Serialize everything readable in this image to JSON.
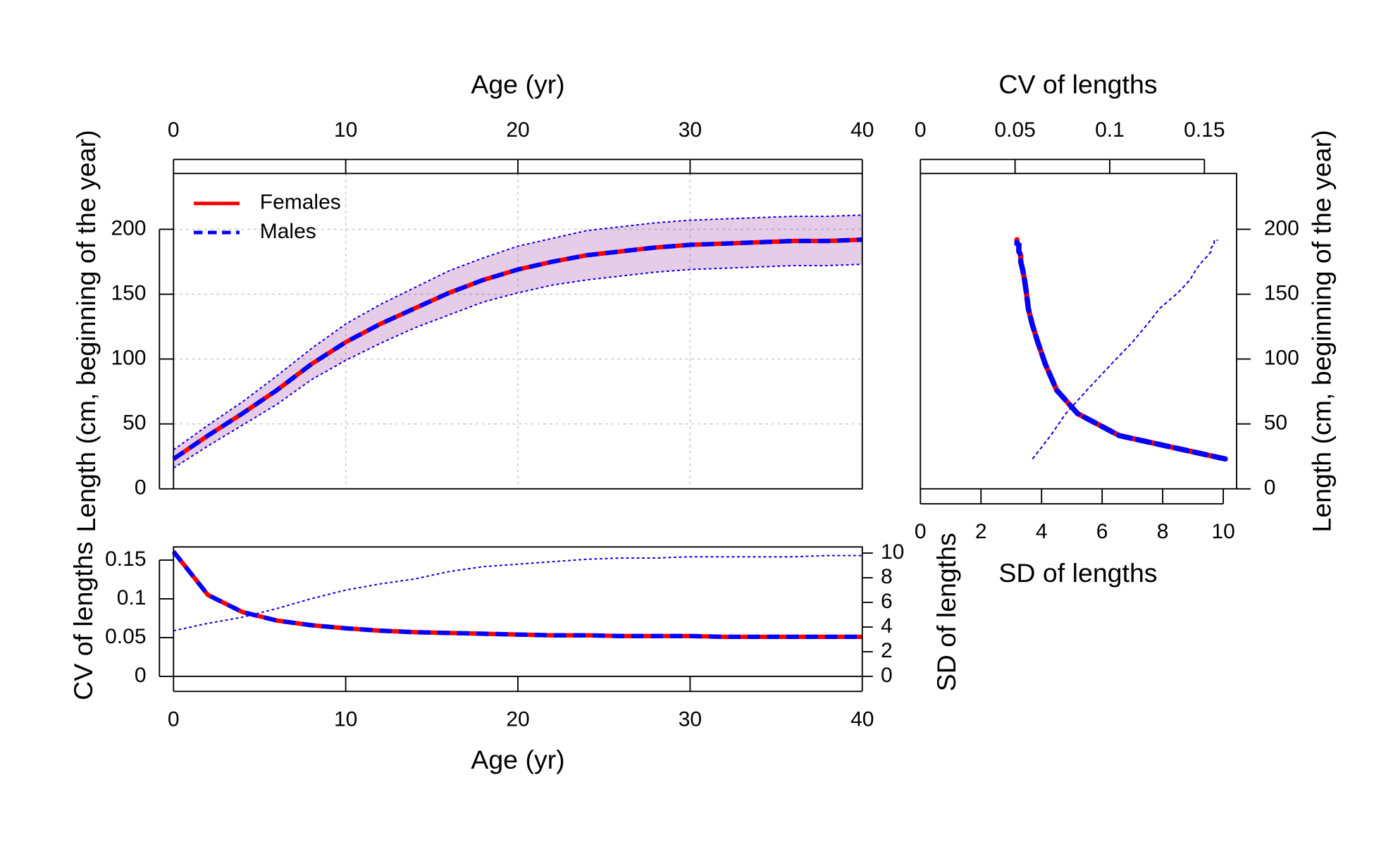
{
  "chart_data": [
    {
      "type": "line",
      "xlabel": "Age (yr)",
      "ylabel": "Length (cm, beginning of the year)",
      "x": [
        0,
        2,
        4,
        6,
        8,
        10,
        12,
        14,
        16,
        18,
        20,
        22,
        24,
        26,
        28,
        30,
        32,
        34,
        36,
        38,
        40
      ],
      "series": [
        {
          "name": "Females",
          "color": "#ff0000",
          "linestyle": "solid",
          "values": [
            23,
            41,
            58,
            76,
            96,
            113,
            127,
            139,
            151,
            161,
            169,
            175,
            180,
            183,
            186,
            188,
            189,
            190,
            191,
            191,
            192
          ],
          "upper": [
            30,
            49,
            67,
            87,
            108,
            127,
            142,
            155,
            168,
            178,
            187,
            193,
            199,
            202,
            205,
            207,
            208,
            209,
            210,
            210,
            211
          ],
          "lower": [
            16,
            33,
            49,
            65,
            84,
            99,
            112,
            124,
            134,
            144,
            151,
            157,
            161,
            164,
            167,
            169,
            170,
            171,
            172,
            172,
            173
          ]
        },
        {
          "name": "Males",
          "color": "#0000ff",
          "linestyle": "dashed",
          "values": [
            23,
            41,
            58,
            76,
            96,
            113,
            127,
            139,
            151,
            161,
            169,
            175,
            180,
            183,
            186,
            188,
            189,
            190,
            191,
            191,
            192
          ],
          "upper": [
            30,
            49,
            67,
            87,
            108,
            127,
            142,
            155,
            168,
            178,
            187,
            193,
            199,
            202,
            205,
            207,
            208,
            209,
            210,
            210,
            211
          ],
          "lower": [
            16,
            33,
            49,
            65,
            84,
            99,
            112,
            124,
            134,
            144,
            151,
            157,
            161,
            164,
            167,
            169,
            170,
            171,
            172,
            172,
            173
          ]
        }
      ],
      "xlim": [
        0,
        40
      ],
      "xticks": [
        0,
        10,
        20,
        30,
        40
      ],
      "ylim": [
        0,
        243
      ],
      "yticks": [
        0,
        50,
        100,
        150,
        200
      ],
      "grid": true,
      "legend": "top-left"
    },
    {
      "type": "line",
      "xlabel": "Age (yr)",
      "ylabel": "CV of lengths",
      "y2label": "SD of lengths",
      "x": [
        0,
        2,
        4,
        6,
        8,
        10,
        12,
        14,
        16,
        18,
        20,
        22,
        24,
        26,
        28,
        30,
        32,
        34,
        36,
        38,
        40
      ],
      "series": [
        {
          "color": "#ff0000",
          "linestyle": "solid",
          "values": [
            0.161,
            0.105,
            0.083,
            0.072,
            0.066,
            0.062,
            0.059,
            0.057,
            0.056,
            0.055,
            0.054,
            0.053,
            0.053,
            0.052,
            0.052,
            0.052,
            0.051,
            0.051,
            0.051,
            0.051,
            0.051
          ],
          "sd": [
            3.7,
            4.3,
            4.8,
            5.5,
            6.3,
            7.0,
            7.5,
            7.9,
            8.5,
            8.9,
            9.1,
            9.3,
            9.5,
            9.6,
            9.6,
            9.7,
            9.7,
            9.7,
            9.7,
            9.8,
            9.8
          ]
        },
        {
          "color": "#0000ff",
          "linestyle": "dashed",
          "values": [
            0.161,
            0.105,
            0.083,
            0.072,
            0.066,
            0.062,
            0.059,
            0.057,
            0.056,
            0.055,
            0.054,
            0.053,
            0.053,
            0.052,
            0.052,
            0.052,
            0.051,
            0.051,
            0.051,
            0.051,
            0.051
          ],
          "sd": [
            3.7,
            4.3,
            4.8,
            5.5,
            6.3,
            7.0,
            7.5,
            7.9,
            8.5,
            8.9,
            9.1,
            9.3,
            9.5,
            9.6,
            9.6,
            9.7,
            9.7,
            9.7,
            9.7,
            9.8,
            9.8
          ]
        }
      ],
      "xlim": [
        0,
        40
      ],
      "xticks": [
        0,
        10,
        20,
        30,
        40
      ],
      "ylim": [
        0,
        0.167
      ],
      "yticks": [
        0,
        0.05,
        0.1,
        0.15
      ],
      "y2lim": [
        0,
        10.5
      ],
      "y2ticks": [
        0,
        2,
        4,
        6,
        8,
        10
      ]
    },
    {
      "type": "scatter",
      "xlabel": "SD of lengths",
      "x2label": "CV of lengths",
      "ylabel": "Length (cm, beginning of the year)",
      "xlim": [
        0,
        10.44
      ],
      "xticks": [
        0,
        2,
        4,
        6,
        8,
        10
      ],
      "x2lim": [
        0,
        0.167
      ],
      "x2ticks": [
        0,
        0.05,
        0.1,
        0.15
      ],
      "ylim": [
        0,
        243
      ],
      "yticks": [
        0,
        50,
        100,
        150,
        200
      ]
    }
  ]
}
